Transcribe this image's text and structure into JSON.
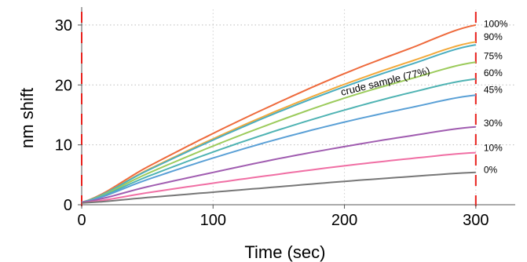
{
  "chart_data": {
    "type": "line",
    "title": "",
    "xlabel": "Time (sec)",
    "ylabel": "nm shift",
    "xlim": [
      0,
      330
    ],
    "ylim": [
      0,
      33
    ],
    "xticks": [
      0,
      100,
      200,
      300
    ],
    "yticks": [
      0,
      10,
      20,
      30
    ],
    "grid": true,
    "legend": "none",
    "series": [
      {
        "name": "100%",
        "color": "#ee6a3c",
        "x": [
          0,
          50,
          100,
          150,
          200,
          250,
          300
        ],
        "y": [
          0.4,
          6.3,
          11.9,
          17.1,
          21.9,
          26.1,
          30.0
        ]
      },
      {
        "name": "90%",
        "color": "#f2a93b",
        "x": [
          0,
          50,
          100,
          150,
          200,
          250,
          300
        ],
        "y": [
          0.4,
          5.8,
          11.0,
          15.8,
          20.1,
          23.9,
          27.2
        ]
      },
      {
        "name": "crude sample (77%)",
        "color": "#4aaec0",
        "x": [
          0,
          50,
          100,
          150,
          200,
          250,
          300
        ],
        "y": [
          0.4,
          5.7,
          10.8,
          15.5,
          19.7,
          23.4,
          26.7
        ]
      },
      {
        "name": "75%",
        "color": "#9ccb5c",
        "x": [
          0,
          50,
          100,
          150,
          200,
          250,
          300
        ],
        "y": [
          0.4,
          5.2,
          9.8,
          14.0,
          17.8,
          21.0,
          23.8
        ]
      },
      {
        "name": "60%",
        "color": "#4fb3b3",
        "x": [
          0,
          50,
          100,
          150,
          200,
          250,
          300
        ],
        "y": [
          0.4,
          4.7,
          8.8,
          12.5,
          15.8,
          18.7,
          21.0
        ]
      },
      {
        "name": "45%",
        "color": "#5aa0d6",
        "x": [
          0,
          50,
          100,
          150,
          200,
          250,
          300
        ],
        "y": [
          0.4,
          4.2,
          7.8,
          11.0,
          13.8,
          16.2,
          18.3
        ]
      },
      {
        "name": "30%",
        "color": "#a05cb0",
        "x": [
          0,
          50,
          100,
          150,
          200,
          250,
          300
        ],
        "y": [
          0.4,
          3.0,
          5.4,
          7.7,
          9.7,
          11.5,
          13.0
        ]
      },
      {
        "name": "10%",
        "color": "#f06fa4",
        "x": [
          0,
          50,
          100,
          150,
          200,
          250,
          300
        ],
        "y": [
          0.3,
          2.0,
          3.6,
          5.1,
          6.5,
          7.7,
          8.7
        ]
      },
      {
        "name": "0%",
        "color": "#777777",
        "x": [
          0,
          50,
          100,
          150,
          200,
          250,
          300
        ],
        "y": [
          0.3,
          1.2,
          2.1,
          3.0,
          3.9,
          4.7,
          5.4
        ]
      }
    ],
    "markers": [
      {
        "x": 0,
        "style": "dashed",
        "color": "#e8201c"
      },
      {
        "x": 300,
        "style": "dashed",
        "color": "#e8201c"
      }
    ],
    "labels": {
      "series_end": [
        "100%",
        "90%",
        "75%",
        "60%",
        "45%",
        "30%",
        "10%",
        "0%"
      ],
      "annotation": "crude sample (77%)"
    }
  }
}
